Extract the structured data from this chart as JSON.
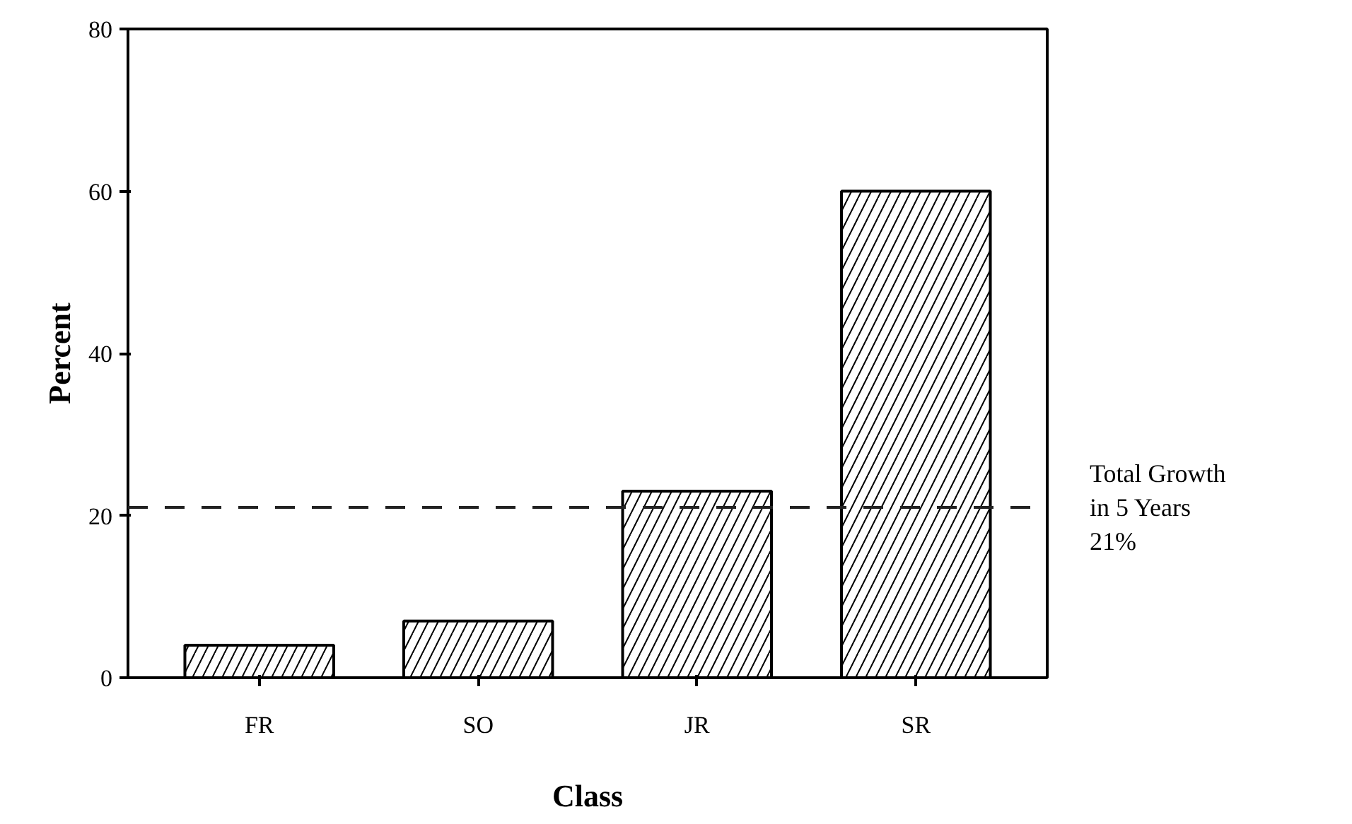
{
  "chart_data": {
    "type": "bar",
    "xlabel": "Class",
    "ylabel": "Percent",
    "categories": [
      "FR",
      "SO",
      "JR",
      "SR"
    ],
    "values": [
      4,
      7,
      23,
      60
    ],
    "color": "#ffffff",
    "ylim": [
      0,
      80
    ],
    "yticks": [
      0,
      20,
      40,
      60,
      80
    ],
    "grid": false,
    "ref_lines": [
      {
        "axis": "y",
        "value": 21,
        "label": "Total Growth\nin 5 Years\n21%",
        "line_style": "dashed",
        "color": "#222222"
      }
    ]
  }
}
